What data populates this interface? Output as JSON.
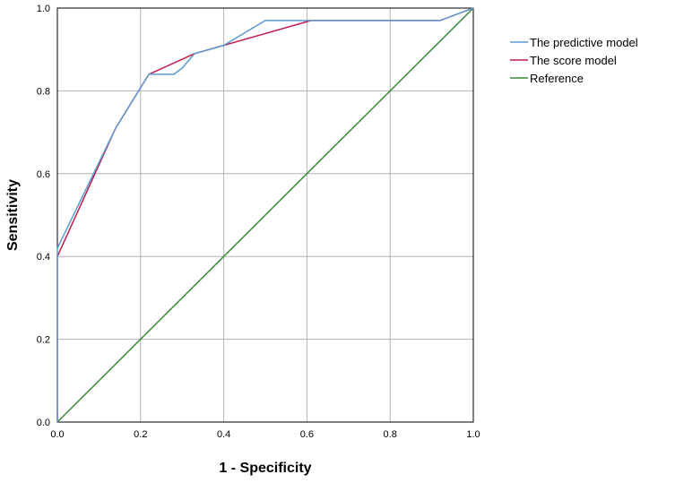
{
  "chart_data": {
    "type": "line",
    "title": "",
    "xlabel": "1 - Specificity",
    "ylabel": "Sensitivity",
    "xlim": [
      0,
      1
    ],
    "ylim": [
      0,
      1
    ],
    "x_ticks": [
      "0.0",
      "0.2",
      "0.4",
      "0.6",
      "0.8",
      "1.0"
    ],
    "y_ticks": [
      "0.0",
      "0.2",
      "0.4",
      "0.6",
      "0.8",
      "1.0"
    ],
    "grid": true,
    "legend_position": "right",
    "series": [
      {
        "name": "The predictive model",
        "color": "#5b9bd5",
        "x": [
          0,
          0,
          0.14,
          0.22,
          0.28,
          0.3,
          0.33,
          0.4,
          0.5,
          0.61,
          0.92,
          1.0
        ],
        "y": [
          0,
          0.42,
          0.71,
          0.84,
          0.84,
          0.855,
          0.89,
          0.91,
          0.97,
          0.97,
          0.97,
          1.0
        ]
      },
      {
        "name": "The score model",
        "color": "#be1e4a",
        "x": [
          0,
          0,
          0.14,
          0.22,
          0.33,
          0.4,
          0.61,
          0.92,
          1.0
        ],
        "y": [
          0,
          0.4,
          0.71,
          0.84,
          0.89,
          0.91,
          0.97,
          0.97,
          1.0
        ]
      },
      {
        "name": "Reference",
        "color": "#3a8a3a",
        "x": [
          0,
          1
        ],
        "y": [
          0,
          1
        ]
      }
    ]
  }
}
